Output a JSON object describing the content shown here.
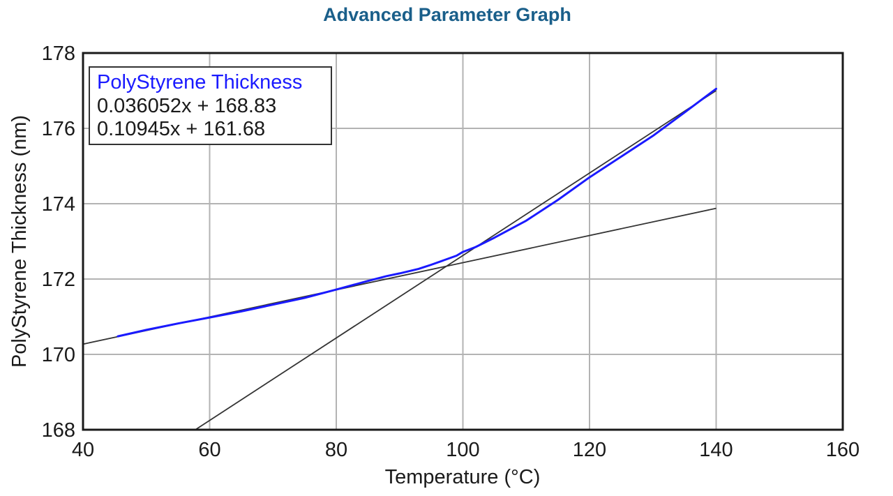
{
  "chart_data": {
    "type": "line",
    "title": "Advanced Parameter Graph",
    "xlabel": "Temperature (°C)",
    "ylabel": "PolyStyrene Thickness (nm)",
    "xlim": [
      40,
      160
    ],
    "ylim": [
      168,
      178
    ],
    "xticks": [
      "40",
      "60",
      "80",
      "100",
      "120",
      "140",
      "160"
    ],
    "yticks": [
      "168",
      "170",
      "172",
      "174",
      "176",
      "178"
    ],
    "grid": true,
    "legend_position": "top-left",
    "legend": {
      "series_label": "PolyStyrene Thickness",
      "fit_labels": [
        "0.036052x + 168.83",
        "0.10945x + 161.68"
      ]
    },
    "series": [
      {
        "name": "PolyStyrene Thickness",
        "color": "#1a1aff",
        "x": [
          45.5,
          50,
          55,
          60,
          65,
          70,
          75,
          80,
          85,
          88,
          90,
          93,
          95,
          97,
          99,
          100,
          102,
          105,
          110,
          115,
          120,
          125,
          130,
          135,
          140
        ],
        "y": [
          170.48,
          170.65,
          170.82,
          170.98,
          171.14,
          171.32,
          171.5,
          171.72,
          171.95,
          172.08,
          172.15,
          172.27,
          172.38,
          172.5,
          172.62,
          172.72,
          172.85,
          173.1,
          173.55,
          174.1,
          174.7,
          175.25,
          175.8,
          176.42,
          177.05
        ]
      }
    ],
    "fit_lines": [
      {
        "label": "0.036052x + 168.83",
        "slope": 0.036052,
        "intercept": 168.83,
        "x_range": [
          40,
          140
        ],
        "color": "#333333"
      },
      {
        "label": "0.10945x + 161.68",
        "slope": 0.10945,
        "intercept": 161.68,
        "x_range": [
          40,
          140
        ],
        "color": "#333333"
      }
    ],
    "colors": {
      "series": "#1a1aff",
      "fit": "#333333",
      "grid": "#b3b3b3",
      "frame": "#1a1a1a",
      "title": "#1a5f8a"
    }
  }
}
